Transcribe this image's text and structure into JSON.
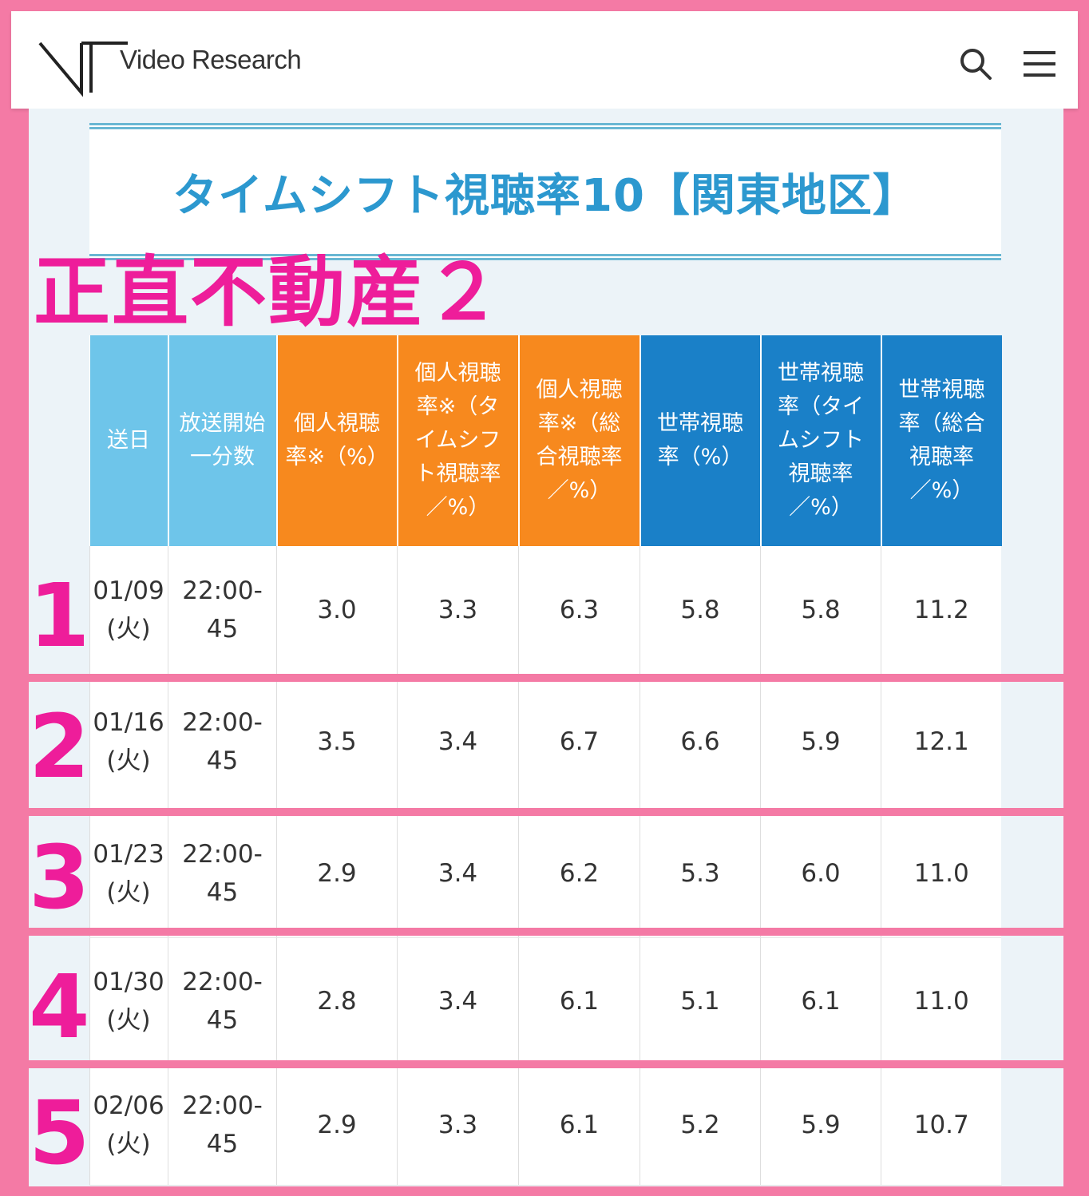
{
  "header": {
    "brand": "Video Research"
  },
  "banner": {
    "title": "タイムシフト視聴率10【関東地区】"
  },
  "overlay": {
    "title": "正直不動産２"
  },
  "table": {
    "columns": [
      "送日",
      "放送開始一分数",
      "個人視聴率※（%）",
      "個人視聴率※（タイムシフト視聴率／%）",
      "個人視聴率※（総合視聴率／%）",
      "世帯視聴率（%）",
      "世帯視聴率（タイムシフト視聴率／%）",
      "世帯視聴率（総合視聴率／%）"
    ],
    "rows": [
      {
        "rank": "1",
        "date": "01/09",
        "day": "(火)",
        "time": "22:00-",
        "min": "45",
        "p": "3.0",
        "pts": "3.3",
        "ptot": "6.3",
        "h": "5.8",
        "hts": "5.8",
        "htot": "11.2"
      },
      {
        "rank": "2",
        "date": "01/16",
        "day": "(火)",
        "time": "22:00-",
        "min": "45",
        "p": "3.5",
        "pts": "3.4",
        "ptot": "6.7",
        "h": "6.6",
        "hts": "5.9",
        "htot": "12.1"
      },
      {
        "rank": "3",
        "date": "01/23",
        "day": "(火)",
        "time": "22:00-",
        "min": "45",
        "p": "2.9",
        "pts": "3.4",
        "ptot": "6.2",
        "h": "5.3",
        "hts": "6.0",
        "htot": "11.0"
      },
      {
        "rank": "4",
        "date": "01/30",
        "day": "(火)",
        "time": "22:00-",
        "min": "45",
        "p": "2.8",
        "pts": "3.4",
        "ptot": "6.1",
        "h": "5.1",
        "hts": "6.1",
        "htot": "11.0"
      },
      {
        "rank": "5",
        "date": "02/06",
        "day": "(火)",
        "time": "22:00-",
        "min": "45",
        "p": "2.9",
        "pts": "3.3",
        "ptot": "6.1",
        "h": "5.2",
        "hts": "5.9",
        "htot": "10.7"
      }
    ]
  },
  "colors": {
    "frame": "#f47aa5",
    "overlay_text": "#ee1d9a",
    "header_light_blue": "#6ec5ea",
    "header_orange": "#f7891e",
    "header_blue": "#1a80c8",
    "banner_text": "#2c98cf"
  },
  "icons": {
    "search": "search-icon",
    "menu": "hamburger-menu-icon",
    "logo": "video-research-logo"
  }
}
